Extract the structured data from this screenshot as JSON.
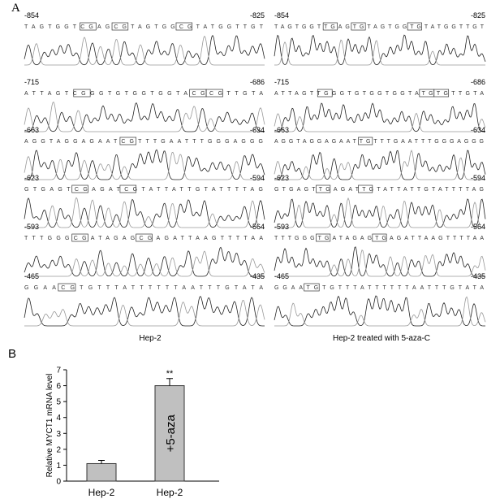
{
  "panel_a": {
    "label": "A",
    "columns": [
      {
        "caption": "Hep-2",
        "rows": [
          {
            "start": "-854",
            "end": "-825",
            "sequence": "TAGTGGTCGAGCGTAGTGGCGTATGGTTGT"
          },
          {
            "start": "-715",
            "end": "-686",
            "sequence": "ATTAGTCGGGTGTGGTGGTACGCGTTGTA"
          },
          {
            "start": "-663",
            "end": "-634",
            "sequence": "AGGTAGGAGAATCGTTTGAATTTGGGAGGG"
          },
          {
            "start": "-623",
            "end": "-594",
            "sequence": "GTGAGTCGAGATCGTATTATTGTATTTTAG"
          },
          {
            "start": "-593",
            "end": "-564",
            "sequence": "TTTGGGCGATAGAGCGAGATTAAGTTTTAA"
          },
          {
            "start": "-465",
            "end": "-435",
            "sequence": "GGAACGTGTTTATTTTTTAATTTGTATA"
          }
        ]
      },
      {
        "caption": "Hep-2 treated with 5-aza-C",
        "rows": [
          {
            "start": "-854",
            "end": "-825",
            "sequence": "TAGTGGTTGAGTGTAGTGGTGTATGGTTGT"
          },
          {
            "start": "-715",
            "end": "-686",
            "sequence": "ATTAGTTGGGTGTGGTGGTATGTGTTGTA"
          },
          {
            "start": "-663",
            "end": "-634",
            "sequence": "AGGTAGGAGAATTGTTTGAATTTGGGAGGG"
          },
          {
            "start": "-623",
            "end": "-594",
            "sequence": "GTGAGTTGAGATTGTATTATTGTATTTTAG"
          },
          {
            "start": "-593",
            "end": "-564",
            "sequence": "TTTGGGTGATAGAGTGAGATTAAGTTTTAA"
          },
          {
            "start": "-465",
            "end": "-435",
            "sequence": "GGAATGTGTTTATTTTTTAATTTGTATA"
          }
        ]
      }
    ]
  },
  "panel_b": {
    "label": "B"
  },
  "chart_data": {
    "type": "bar",
    "y_label": "Relative MYCT1 mRNA level",
    "categories": [
      "Hep-2",
      "Hep-2"
    ],
    "values": [
      1.1,
      6.0
    ],
    "errors": [
      0.2,
      0.45
    ],
    "significance": [
      null,
      "**"
    ],
    "bar_labels": [
      null,
      "+5-aza"
    ],
    "color": "#c0c0c0",
    "ylim": [
      0,
      7
    ],
    "yticks": [
      0,
      1,
      2,
      3,
      4,
      5,
      6,
      7
    ]
  }
}
